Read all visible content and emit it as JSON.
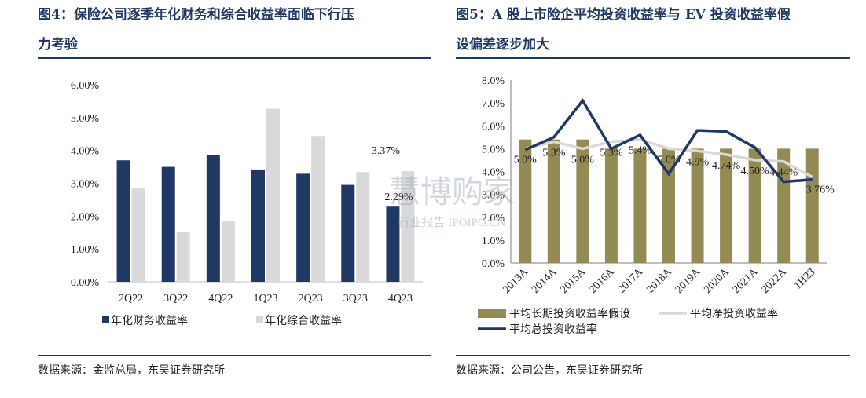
{
  "left": {
    "title_line1": "图4：保险公司逐季年化财务和综合收益率面临下行压",
    "title_line2": "力考验",
    "source": "数据来源：金监总局，东吴证券研究所",
    "chart_data": {
      "type": "bar",
      "categories": [
        "2Q22",
        "3Q22",
        "4Q22",
        "1Q23",
        "2Q23",
        "3Q23",
        "4Q23"
      ],
      "series": [
        {
          "name": "年化财务收益率",
          "color": "#1F3864",
          "values": [
            3.7,
            3.5,
            3.86,
            3.42,
            3.29,
            2.95,
            2.29
          ]
        },
        {
          "name": "年化综合收益率",
          "color": "#D9D9D9",
          "values": [
            2.86,
            1.53,
            1.85,
            5.27,
            4.44,
            3.34,
            3.37
          ]
        }
      ],
      "yticks": [
        "0.00%",
        "1.00%",
        "2.00%",
        "3.00%",
        "4.00%",
        "5.00%",
        "6.00%"
      ],
      "ylim": [
        0,
        6
      ],
      "annotations": [
        {
          "text": "2.29%",
          "series": 0,
          "index": 6
        },
        {
          "text": "3.37%",
          "series": 1,
          "index": 6
        }
      ],
      "legend_position": "bottom"
    }
  },
  "right": {
    "title_line1": "图5：A 股上市险企平均投资收益率与 EV 投资收益率假",
    "title_line2": "设偏差逐步加大",
    "source": "数据来源：公司公告，东吴证券研究所",
    "chart_data": {
      "type": "bar+line",
      "categories": [
        "2013A",
        "2014A",
        "2015A",
        "2016A",
        "2017A",
        "2018A",
        "2019A",
        "2020A",
        "2021A",
        "2022A",
        "1H23"
      ],
      "yticks": [
        "0.0%",
        "1.0%",
        "2.0%",
        "3.0%",
        "4.0%",
        "5.0%",
        "6.0%",
        "7.0%",
        "8.0%"
      ],
      "ylim": [
        0,
        8
      ],
      "series": [
        {
          "name": "平均长期投资收益率假设",
          "kind": "bar",
          "color": "#948A54",
          "values": [
            5.4,
            5.4,
            5.4,
            5.0,
            5.0,
            5.0,
            5.0,
            5.0,
            5.0,
            5.0,
            5.0
          ]
        },
        {
          "name": "平均净投资收益率",
          "kind": "line",
          "color": "#D9D9D9",
          "values": [
            5.0,
            5.3,
            5.0,
            5.3,
            5.4,
            5.0,
            4.9,
            4.74,
            4.5,
            4.44,
            3.76
          ]
        },
        {
          "name": "平均总投资收益率",
          "kind": "line",
          "color": "#1F3864",
          "values": [
            4.95,
            5.5,
            7.1,
            5.0,
            5.6,
            3.9,
            5.8,
            5.75,
            5.05,
            3.55,
            3.65
          ]
        }
      ],
      "data_labels": [
        "5.0%",
        "5.3%",
        "5.0%",
        "5.3%",
        "5.4%",
        "5.0%",
        "4.9%",
        "4.74%",
        "4.50%",
        "4.44%",
        "3.76%"
      ],
      "legend_position": "bottom"
    }
  },
  "watermark": {
    "line1": "慧博购家",
    "line2": "行业报告 IPOIPO.CN"
  }
}
